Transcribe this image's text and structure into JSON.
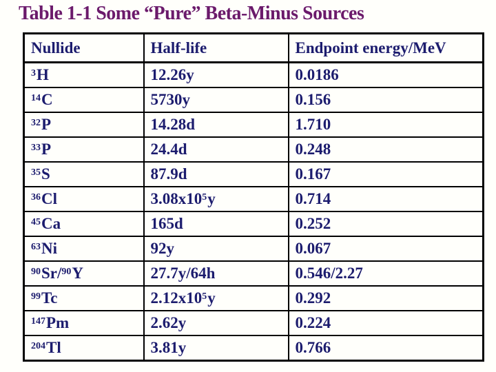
{
  "title": "Table 1-1 Some “Pure” Beta-Minus Sources",
  "title_color": "#6b1a6b",
  "table": {
    "text_color": "#1c1c6e",
    "border_color": "#000000",
    "columns": [
      "Nullide",
      "Half-life",
      "Endpoint energy/MeV"
    ],
    "rows": [
      {
        "nuclide": "^{3}H",
        "half_life": "12.26y",
        "endpoint_energy": "0.0186"
      },
      {
        "nuclide": "^{14}C",
        "half_life": "5730y",
        "endpoint_energy": "0.156"
      },
      {
        "nuclide": "^{32}P",
        "half_life": "14.28d",
        "endpoint_energy": "1.710"
      },
      {
        "nuclide": "^{33}P",
        "half_life": "24.4d",
        "endpoint_energy": "0.248"
      },
      {
        "nuclide": "^{35}S",
        "half_life": "87.9d",
        "endpoint_energy": "0.167"
      },
      {
        "nuclide": "^{36}Cl",
        "half_life": "3.08x10^{5}y",
        "endpoint_energy": "0.714"
      },
      {
        "nuclide": "^{45}Ca",
        "half_life": "165d",
        "endpoint_energy": "0.252"
      },
      {
        "nuclide": "^{63}Ni",
        "half_life": "92y",
        "endpoint_energy": "0.067"
      },
      {
        "nuclide": "^{90}Sr/^{90}Y",
        "half_life": "27.7y/64h",
        "endpoint_energy": "0.546/2.27"
      },
      {
        "nuclide": "^{99}Tc",
        "half_life": "2.12x10^{5}y",
        "endpoint_energy": "0.292"
      },
      {
        "nuclide": "^{147}Pm",
        "half_life": "2.62y",
        "endpoint_energy": "0.224"
      },
      {
        "nuclide": "^{204}Tl",
        "half_life": "3.81y",
        "endpoint_energy": "0.766"
      }
    ]
  }
}
